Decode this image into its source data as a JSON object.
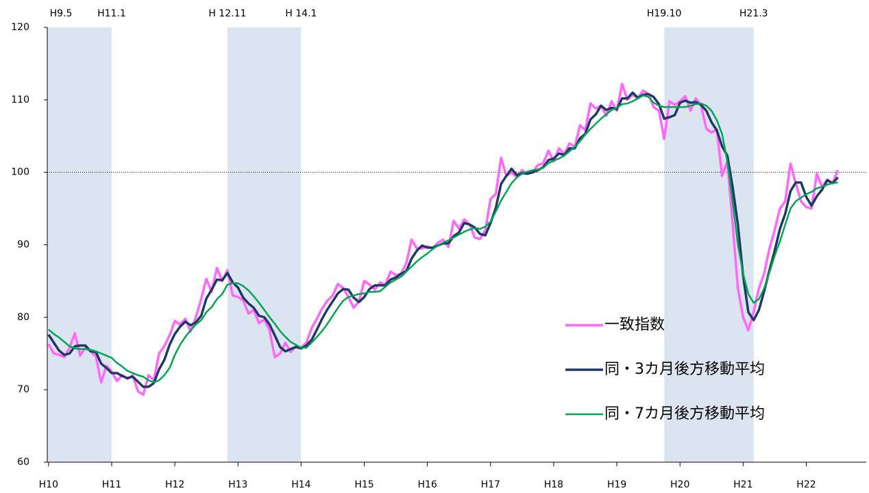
{
  "chart_data": {
    "type": "line",
    "x": [
      10,
      10.083,
      10.167,
      10.25,
      10.333,
      10.417,
      10.5,
      10.583,
      10.667,
      10.75,
      10.833,
      10.917,
      11,
      11.083,
      11.167,
      11.25,
      11.333,
      11.417,
      11.5,
      11.583,
      11.667,
      11.75,
      11.833,
      11.917,
      12,
      12.083,
      12.167,
      12.25,
      12.333,
      12.417,
      12.5,
      12.583,
      12.667,
      12.75,
      12.833,
      12.917,
      13,
      13.083,
      13.167,
      13.25,
      13.333,
      13.417,
      13.5,
      13.583,
      13.667,
      13.75,
      13.833,
      13.917,
      14,
      14.083,
      14.167,
      14.25,
      14.333,
      14.417,
      14.5,
      14.583,
      14.667,
      14.75,
      14.833,
      14.917,
      15,
      15.083,
      15.167,
      15.25,
      15.333,
      15.417,
      15.5,
      15.583,
      15.667,
      15.75,
      15.833,
      15.917,
      16,
      16.083,
      16.167,
      16.25,
      16.333,
      16.417,
      16.5,
      16.583,
      16.667,
      16.75,
      16.833,
      16.917,
      17,
      17.083,
      17.167,
      17.25,
      17.333,
      17.417,
      17.5,
      17.583,
      17.667,
      17.75,
      17.833,
      17.917,
      18,
      18.083,
      18.167,
      18.25,
      18.333,
      18.417,
      18.5,
      18.583,
      18.667,
      18.75,
      18.833,
      18.917,
      19,
      19.083,
      19.167,
      19.25,
      19.333,
      19.417,
      19.5,
      19.583,
      19.667,
      19.75,
      19.833,
      19.917,
      20,
      20.083,
      20.167,
      20.25,
      20.333,
      20.417,
      20.5,
      20.583,
      20.667,
      20.75,
      20.833,
      20.917,
      21,
      21.083,
      21.167,
      21.25,
      21.333,
      21.417,
      21.5,
      21.583,
      21.667,
      21.75,
      21.833,
      21.917,
      22,
      22.083,
      22.167,
      22.25,
      22.333,
      22.417,
      22.5
    ],
    "series": [
      {
        "name": "一致指数",
        "color": "#ff66ff",
        "width": 3.5,
        "values": [
          76.3,
          75,
          74.8,
          74.5,
          75.8,
          77.8,
          74.7,
          75.8,
          75.3,
          74.6,
          71,
          73.3,
          72.5,
          71.2,
          72,
          71.5,
          72,
          69.8,
          69.3,
          72,
          71.3,
          75,
          76,
          77.5,
          79.5,
          79,
          79.8,
          78,
          80,
          82.5,
          85.3,
          83.5,
          86.8,
          85,
          86.5,
          83,
          82.8,
          82.3,
          80.5,
          81,
          79.2,
          79.7,
          78.2,
          74.5,
          75,
          76.5,
          75.2,
          76,
          75.8,
          76.5,
          78.5,
          79.8,
          81.2,
          82.3,
          83,
          84.6,
          84,
          82.8,
          81.3,
          82.2,
          85,
          84.5,
          83.8,
          84.8,
          84.5,
          86.3,
          85.8,
          86,
          87.5,
          90.7,
          89.5,
          89.5,
          89.8,
          89.5,
          90.3,
          90.7,
          89.7,
          93.3,
          92.2,
          93.5,
          92.8,
          91,
          90.8,
          92,
          96.3,
          97,
          102,
          99.5,
          100,
          99.3,
          100.3,
          99.8,
          100,
          101,
          101.2,
          103,
          101.5,
          103.3,
          102.5,
          104,
          103.5,
          106.5,
          105.8,
          109.5,
          108.8,
          109.2,
          107.8,
          109.8,
          108.5,
          112.2,
          110,
          110.7,
          110.2,
          111.3,
          110.8,
          109,
          108.5,
          104.6,
          109.8,
          109.3,
          109.8,
          110.5,
          108.5,
          110.2,
          109.3,
          106,
          105.5,
          105.9,
          99.5,
          101.5,
          93,
          84,
          80,
          78.2,
          80.7,
          84,
          86,
          89.5,
          92,
          95,
          96,
          101.2,
          98.5,
          96,
          95.2,
          95,
          99.8,
          98,
          99,
          98.5,
          100.3
        ]
      },
      {
        "name": "同・3カ月後方移動平均",
        "color": "#1f3864",
        "width": 3.5,
        "values": [
          77.6,
          76.5,
          75.4,
          74.8,
          75,
          76,
          76.1,
          76.1,
          75.3,
          75.2,
          73.6,
          73,
          72.3,
          72.3,
          71.9,
          71.6,
          71.8,
          71.1,
          70.4,
          70.4,
          70.9,
          72.8,
          74.1,
          76.2,
          77.7,
          78.7,
          79.4,
          78.9,
          79.3,
          80.2,
          82.6,
          83.8,
          85.2,
          85.1,
          86.1,
          84.8,
          84.1,
          82.7,
          81.9,
          81.3,
          80.2,
          80,
          79,
          77.5,
          75.9,
          75.3,
          75.6,
          75.9,
          75.7,
          76.1,
          76.9,
          78.3,
          79.8,
          81.1,
          82.2,
          83.3,
          83.9,
          83.8,
          82.7,
          82.1,
          82.8,
          83.9,
          84.4,
          84.4,
          84.4,
          85.2,
          85.5,
          86,
          86.4,
          88.1,
          89.2,
          89.9,
          89.6,
          89.6,
          89.9,
          90.2,
          90.2,
          91.2,
          91.7,
          93,
          92.8,
          92.4,
          91.5,
          91.3,
          93,
          95.1,
          98.4,
          99.5,
          100.5,
          99.6,
          99.9,
          99.8,
          100,
          100.3,
          100.7,
          101.7,
          101.9,
          102.6,
          102.4,
          103.3,
          103.3,
          104.7,
          105.3,
          107.3,
          108,
          109.2,
          108.6,
          108.9,
          108.7,
          110.2,
          110.2,
          111,
          110.3,
          110.7,
          110.8,
          110.4,
          109.4,
          107.4,
          107.6,
          107.9,
          109.6,
          109.9,
          109.6,
          109.7,
          109.3,
          108.5,
          106.9,
          105.8,
          103.6,
          102.3,
          98,
          92.8,
          85.7,
          80.7,
          79.6,
          81,
          83.6,
          86.5,
          89.2,
          92.2,
          94.3,
          97.4,
          98.6,
          98.6,
          96.6,
          95.4,
          96.7,
          97.6,
          98.9,
          98.5,
          99.3
        ]
      },
      {
        "name": "同・7カ月後方移動平均",
        "color": "#00a550",
        "width": 2.5,
        "values": [
          78.3,
          77.7,
          77.2,
          76.6,
          76,
          75.7,
          75.6,
          75.6,
          75.5,
          75.3,
          75,
          74.7,
          74.4,
          73.7,
          73.2,
          72.6,
          72.3,
          72,
          71.8,
          71.3,
          71,
          71.3,
          72,
          73,
          74.8,
          76.2,
          77.3,
          78.2,
          79,
          79.6,
          80.7,
          81.4,
          82.5,
          83.2,
          84.5,
          84.7,
          84.7,
          84.3,
          83.7,
          82.9,
          82,
          81,
          80,
          79.1,
          78.1,
          77.3,
          76.6,
          76.2,
          75.8,
          75.8,
          76.5,
          77.3,
          78.1,
          79.1,
          80.2,
          81.3,
          82.3,
          82.8,
          83,
          83.2,
          83.3,
          83.5,
          83.5,
          83.6,
          84.2,
          84.8,
          85.2,
          85.6,
          86.3,
          87,
          87.7,
          88.3,
          88.8,
          89.4,
          89.9,
          90.3,
          90.6,
          91,
          91.4,
          91.8,
          92.1,
          92.3,
          92.2,
          92.5,
          93.2,
          94.6,
          96.1,
          97.3,
          98.5,
          99.3,
          99.8,
          100.1,
          100.3,
          100.4,
          100.6,
          101.3,
          101.6,
          101.9,
          102.3,
          102.9,
          103.5,
          104.3,
          105.2,
          106,
          106.7,
          107.4,
          108,
          108.6,
          108.9,
          109.4,
          109.5,
          109.8,
          110.2,
          110.6,
          110.4,
          109.6,
          109.2,
          109,
          109,
          109,
          109,
          109,
          109.2,
          109.4,
          109.5,
          109.2,
          108.5,
          107.2,
          105.3,
          101.5,
          96,
          90,
          86,
          83.2,
          82,
          82.5,
          84,
          86.2,
          88.5,
          90.5,
          92.8,
          95,
          96,
          96.5,
          97,
          97.3,
          97.8,
          98,
          98.3,
          98.5,
          98.6
        ]
      }
    ],
    "xlim": [
      9.98,
      22.95
    ],
    "xticks": [
      {
        "value": 10,
        "label": "H10"
      },
      {
        "value": 11,
        "label": "H11"
      },
      {
        "value": 12,
        "label": "H12"
      },
      {
        "value": 13,
        "label": "H13"
      },
      {
        "value": 14,
        "label": "H14"
      },
      {
        "value": 15,
        "label": "H15"
      },
      {
        "value": 16,
        "label": "H16"
      },
      {
        "value": 17,
        "label": "H17"
      },
      {
        "value": 18,
        "label": "H18"
      },
      {
        "value": 19,
        "label": "H19"
      },
      {
        "value": 20,
        "label": "H20"
      },
      {
        "value": 21,
        "label": "H21"
      },
      {
        "value": 22,
        "label": "H22"
      }
    ],
    "ylim": [
      60,
      120
    ],
    "yticks": [
      60,
      70,
      80,
      90,
      100,
      110,
      120
    ],
    "reference_line": 100,
    "shaded_bands": [
      {
        "start": {
          "value": 9.333,
          "label": "H9.5"
        },
        "end": {
          "value": 11.0,
          "label": "H11.1"
        }
      },
      {
        "start": {
          "value": 12.833,
          "label": "H 12.11"
        },
        "end": {
          "value": 14.0,
          "label": "H 14.1"
        }
      },
      {
        "start": {
          "value": 19.75,
          "label": "H19.10"
        },
        "end": {
          "value": 21.167,
          "label": "H21.3"
        }
      }
    ],
    "band_color": "#dbe5f1",
    "legend": "lower right"
  }
}
